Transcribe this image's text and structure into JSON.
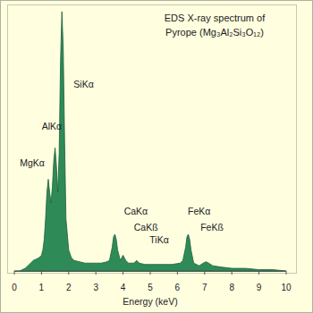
{
  "chart_data": {
    "type": "area",
    "title": "EDS X-ray spectrum of",
    "subtitle": "Pyrope (Mg₃Al₂Si₃O₁₂)",
    "x_label": "Energy (keV)",
    "x": [
      0,
      0.2,
      0.3,
      0.4,
      0.5,
      0.6,
      0.7,
      0.8,
      0.9,
      1.0,
      1.05,
      1.1,
      1.15,
      1.2,
      1.25,
      1.3,
      1.35,
      1.4,
      1.45,
      1.5,
      1.55,
      1.6,
      1.65,
      1.7,
      1.75,
      1.8,
      1.85,
      1.9,
      2.0,
      2.1,
      2.2,
      2.4,
      2.6,
      2.8,
      3.0,
      3.2,
      3.4,
      3.5,
      3.6,
      3.65,
      3.7,
      3.75,
      3.8,
      3.9,
      3.95,
      4.0,
      4.05,
      4.1,
      4.2,
      4.4,
      4.45,
      4.5,
      4.55,
      4.6,
      4.8,
      5.0,
      5.4,
      5.8,
      6.1,
      6.2,
      6.3,
      6.35,
      6.4,
      6.45,
      6.5,
      6.6,
      6.8,
      6.95,
      7.05,
      7.15,
      7.3,
      7.6,
      8.0,
      8.5,
      9.0,
      9.5,
      10.0
    ],
    "values": [
      0,
      0,
      0.5,
      1,
      2,
      3,
      4,
      4.5,
      5,
      6,
      8,
      12,
      20,
      30,
      35,
      30,
      26,
      32,
      42,
      47,
      40,
      30,
      45,
      80,
      99,
      85,
      50,
      20,
      8,
      5,
      4,
      3.5,
      3,
      3,
      3,
      3,
      3.5,
      4,
      9,
      13,
      14,
      12,
      8,
      4,
      5,
      6,
      5,
      4,
      3,
      3,
      3.5,
      4,
      3.5,
      3,
      2.5,
      2.5,
      2.5,
      2.5,
      3,
      4,
      9,
      13,
      14,
      12,
      8,
      3,
      2,
      3,
      3.5,
      3,
      2,
      1.5,
      1,
      1,
      0.5,
      0.5,
      0
    ],
    "color": "#2e8b57",
    "xlim": [
      0,
      10
    ],
    "xticks": [
      0,
      1,
      2,
      3,
      4,
      5,
      6,
      7,
      8,
      9,
      10
    ],
    "ylim": [
      0,
      100
    ],
    "tick_labels": "x",
    "annotations": [
      {
        "text": "MgKα",
        "x": 0.66,
        "y": 40
      },
      {
        "text": "AlKα",
        "x": 1.38,
        "y": 54
      },
      {
        "text": "SiKα",
        "x": 2.55,
        "y": 70
      },
      {
        "text": "CaKα",
        "x": 4.47,
        "y": 21.5
      },
      {
        "text": "CaKß",
        "x": 4.84,
        "y": 15.5
      },
      {
        "text": "TiKα",
        "x": 5.33,
        "y": 10.5
      },
      {
        "text": "FeKα",
        "x": 6.8,
        "y": 21.5
      },
      {
        "text": "FeKß",
        "x": 7.27,
        "y": 15.5
      }
    ]
  }
}
